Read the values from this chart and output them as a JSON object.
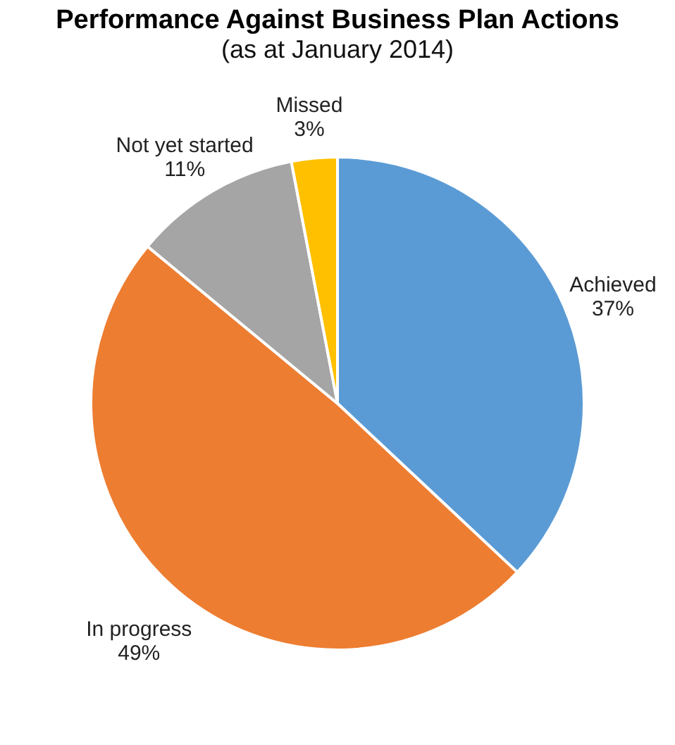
{
  "chart_data": {
    "type": "pie",
    "title": "Performance Against Business Plan Actions",
    "subtitle": "(as at January 2014)",
    "categories": [
      "Achieved",
      "In progress",
      "Not yet started",
      "Missed"
    ],
    "values": [
      37,
      49,
      11,
      3
    ],
    "value_labels": [
      "37%",
      "49%",
      "11%",
      "3%"
    ],
    "colors": [
      "#5b9bd5",
      "#ed7d31",
      "#a5a5a5",
      "#ffc000"
    ],
    "legend": false
  }
}
